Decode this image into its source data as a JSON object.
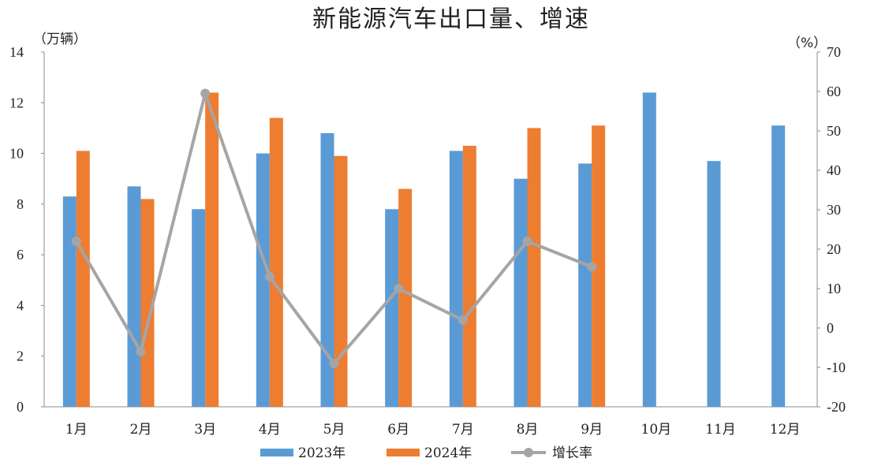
{
  "chart_data": {
    "type": "bar",
    "title": "新能源汽车出口量、增速",
    "categories": [
      "1月",
      "2月",
      "3月",
      "4月",
      "5月",
      "6月",
      "7月",
      "8月",
      "9月",
      "10月",
      "11月",
      "12月"
    ],
    "left_unit": "（万辆）",
    "right_unit": "（%）",
    "ylim": [
      0,
      14
    ],
    "y2lim": [
      -20,
      70
    ],
    "left_ticks": [
      "0",
      "2",
      "4",
      "6",
      "8",
      "10",
      "12",
      "14"
    ],
    "right_ticks": [
      "-20",
      "-10",
      "0",
      "10",
      "20",
      "30",
      "40",
      "50",
      "60",
      "70"
    ],
    "series": [
      {
        "name": "2023年",
        "type": "bar",
        "axis": "left",
        "color": "#5B9BD5",
        "values": [
          8.3,
          8.7,
          7.8,
          10.0,
          10.8,
          7.8,
          10.1,
          9.0,
          9.6,
          12.4,
          9.7,
          11.1
        ]
      },
      {
        "name": "2024年",
        "type": "bar",
        "axis": "left",
        "color": "#ED7D31",
        "values": [
          10.1,
          8.2,
          12.4,
          11.4,
          9.9,
          8.6,
          10.3,
          11.0,
          11.1,
          null,
          null,
          null
        ]
      },
      {
        "name": "增长率",
        "type": "line",
        "axis": "right",
        "color": "#A5A5A5",
        "values": [
          22,
          -6,
          59.5,
          13,
          -9,
          10,
          2,
          22,
          15.5,
          null,
          null,
          null
        ]
      }
    ],
    "negative_tick_color": "#E03A2F",
    "legend_position": "bottom"
  }
}
